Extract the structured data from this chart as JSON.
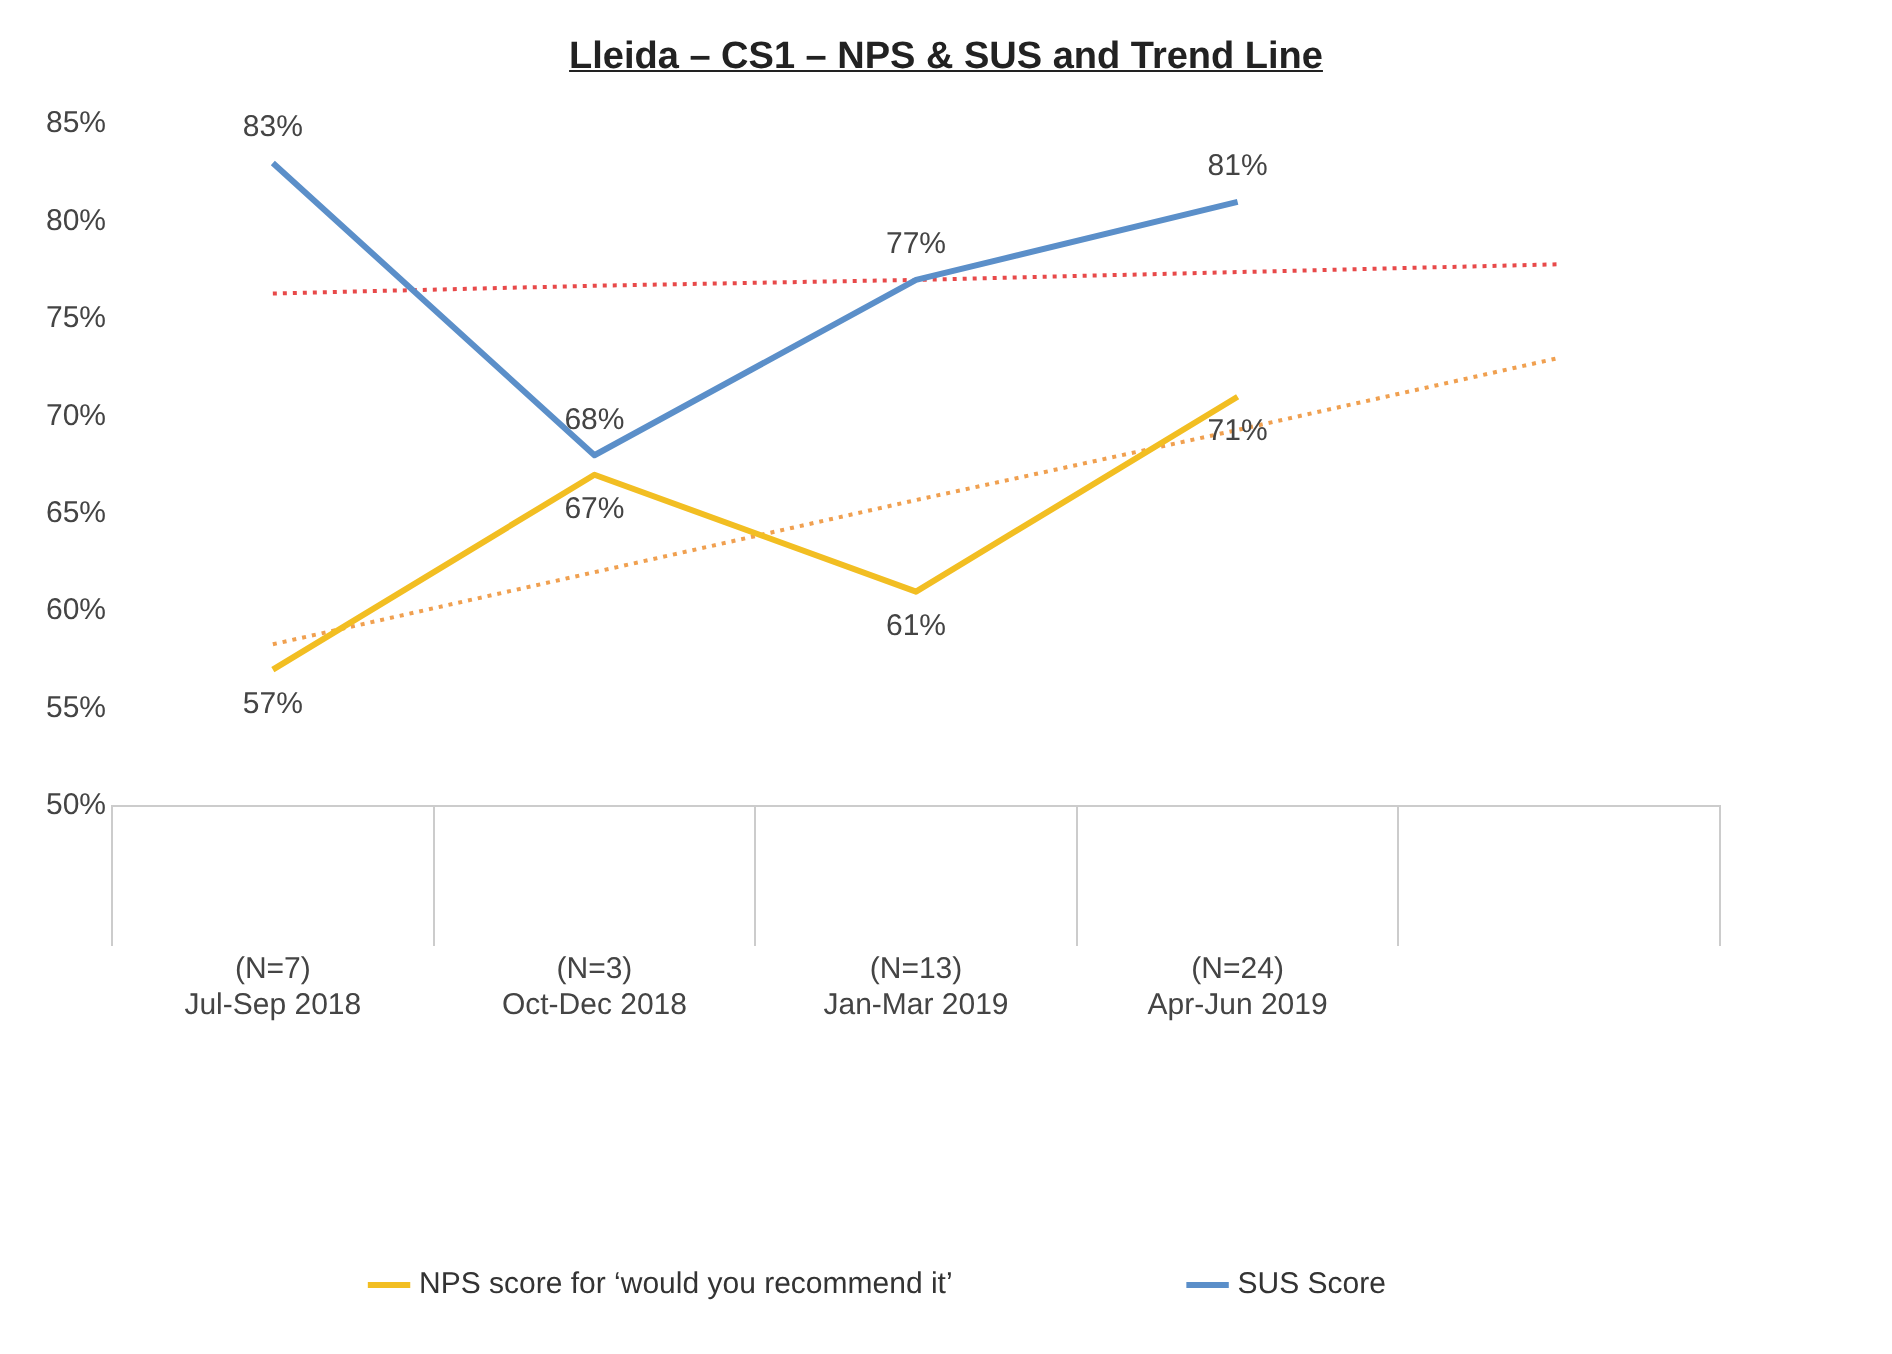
{
  "chart_data": {
    "type": "line",
    "title": "Lleida – CS1 – NPS & SUS and Trend Line",
    "categories": [
      "(N=7)\nJul-Sep 2018",
      "(N=3)\nOct-Dec 2018",
      "(N=13)\nJan-Mar 2019",
      "(N=24)\nApr-Jun 2019",
      null
    ],
    "series": [
      {
        "name": "NPS score for ‘would you recommend it’",
        "color": "#f2be22",
        "values": [
          57,
          67,
          61,
          71,
          null
        ],
        "value_labels": [
          "57%",
          "67%",
          "61%",
          "71%",
          null
        ]
      },
      {
        "name": "SUS Score",
        "color": "#5b8fc9",
        "values": [
          83,
          68,
          77,
          81,
          null
        ],
        "value_labels": [
          "83%",
          "68%",
          "77%",
          "81%",
          null
        ]
      },
      {
        "type": "line",
        "color": "#e84a4a",
        "line_style": "dotted",
        "values": [
          76.3,
          76.7,
          77.0,
          77.4,
          77.8
        ]
      },
      {
        "type": "line",
        "color": "#f0a050",
        "line_style": "dotted",
        "values": [
          58.3,
          62.0,
          65.7,
          69.3,
          73.0
        ]
      }
    ],
    "ylim": [
      50,
      85
    ],
    "yticks": [
      {
        "value": 50,
        "label": "50%"
      },
      {
        "value": 55,
        "label": "55%"
      },
      {
        "value": 60,
        "label": "60%"
      },
      {
        "value": 65,
        "label": "65%"
      },
      {
        "value": 70,
        "label": "70%"
      },
      {
        "value": 75,
        "label": "75%"
      },
      {
        "value": 80,
        "label": "80%"
      },
      {
        "value": 85,
        "label": "85%"
      }
    ],
    "grid": false,
    "legend": "bottom",
    "marker": "none",
    "line_style": "solid"
  }
}
